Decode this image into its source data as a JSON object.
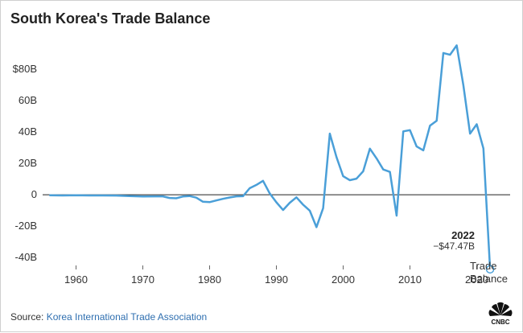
{
  "title": "South Korea's Trade Balance",
  "source": {
    "prefix": "Source:",
    "name": "Korea International Trade Association"
  },
  "logo_text": "CNBC",
  "colors": {
    "line": "#4a9fd8",
    "text": "#333333",
    "zero_line": "#222222",
    "brand_link": "#2f6fb0"
  },
  "chart_data": {
    "type": "line",
    "title": "South Korea's Trade Balance",
    "xlabel": "",
    "ylabel": "",
    "grid": false,
    "xlim": [
      1955,
      2025
    ],
    "ylim": [
      -45,
      100
    ],
    "y_ticks": [
      {
        "value": 80,
        "label": "$80B"
      },
      {
        "value": 60,
        "label": "60B"
      },
      {
        "value": 40,
        "label": "40B"
      },
      {
        "value": 20,
        "label": "20B"
      },
      {
        "value": 0,
        "label": "0"
      },
      {
        "value": -20,
        "label": "-20B"
      },
      {
        "value": -40,
        "label": "-40B"
      }
    ],
    "x_ticks": [
      1960,
      1970,
      1980,
      1990,
      2000,
      2010,
      2020
    ],
    "series": [
      {
        "name": "Trade Balance",
        "x": [
          1956,
          1958,
          1960,
          1962,
          1964,
          1966,
          1968,
          1970,
          1972,
          1973,
          1974,
          1975,
          1976,
          1977,
          1978,
          1979,
          1980,
          1981,
          1982,
          1983,
          1984,
          1985,
          1986,
          1987,
          1988,
          1989,
          1990,
          1991,
          1992,
          1993,
          1994,
          1995,
          1996,
          1997,
          1998,
          1999,
          2000,
          2001,
          2002,
          2003,
          2004,
          2005,
          2006,
          2007,
          2008,
          2009,
          2010,
          2011,
          2012,
          2013,
          2014,
          2015,
          2016,
          2017,
          2018,
          2019,
          2020,
          2021,
          2022
        ],
        "y": [
          -0.3,
          -0.4,
          -0.3,
          -0.4,
          -0.4,
          -0.5,
          -0.8,
          -1.1,
          -1.0,
          -1.0,
          -2.0,
          -2.2,
          -1.1,
          -0.8,
          -1.8,
          -4.4,
          -4.7,
          -3.6,
          -2.6,
          -1.7,
          -1.0,
          -0.9,
          4.2,
          6.3,
          8.9,
          0.9,
          -4.8,
          -9.7,
          -5.1,
          -1.6,
          -6.3,
          -10.1,
          -20.6,
          -8.5,
          39.0,
          24.0,
          11.8,
          9.3,
          10.3,
          15.0,
          29.4,
          23.2,
          16.1,
          14.6,
          -13.3,
          40.4,
          41.2,
          30.8,
          28.3,
          44.0,
          47.2,
          90.3,
          89.2,
          95.2,
          69.7,
          39.0,
          44.9,
          29.5,
          -47.5
        ]
      }
    ],
    "annotations": [
      {
        "x": 2022,
        "y": -47.47,
        "year_label": "2022",
        "value_label": "−$47.47B"
      }
    ]
  }
}
